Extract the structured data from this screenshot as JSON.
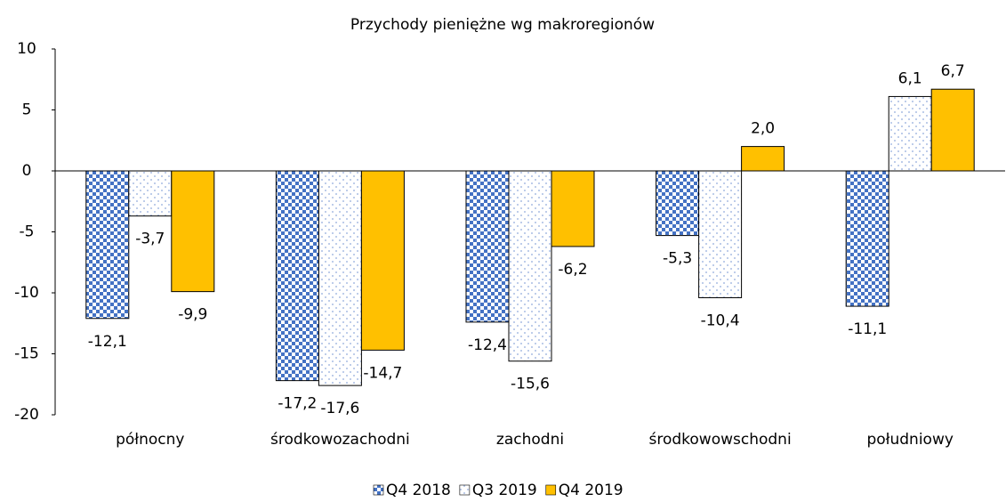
{
  "chart_data": {
    "type": "bar",
    "title": "Przychody pieniężne wg makroregionów",
    "categories": [
      "północny",
      "środkowozachodni",
      "zachodni",
      "środkowowschodni",
      "południowy"
    ],
    "series": [
      {
        "name": "Q4 2018",
        "color": "#4472c4",
        "pattern": "checker",
        "values": [
          -12.1,
          -17.2,
          -12.4,
          -5.3,
          -11.1
        ],
        "value_labels": [
          "-12,1",
          "-17,2",
          "-12,4",
          "-5,3",
          "-11,1"
        ]
      },
      {
        "name": "Q3 2019",
        "color": "#8faadc",
        "pattern": "dots",
        "values": [
          -3.7,
          -17.6,
          -15.6,
          -10.4,
          6.1
        ],
        "value_labels": [
          "-3,7",
          "-17,6",
          "-15,6",
          "-10,4",
          "6,1"
        ]
      },
      {
        "name": "Q4 2019",
        "color": "#ffc000",
        "pattern": "solid",
        "values": [
          -9.9,
          -14.7,
          -6.2,
          2.0,
          6.7
        ],
        "value_labels": [
          "-9,9",
          "-14,7",
          "-6,2",
          "2,0",
          "6,7"
        ]
      }
    ],
    "ylim": [
      -20,
      10
    ],
    "yticks": [
      -20,
      -15,
      -10,
      -5,
      0,
      5,
      10
    ],
    "legend": "bottom"
  }
}
